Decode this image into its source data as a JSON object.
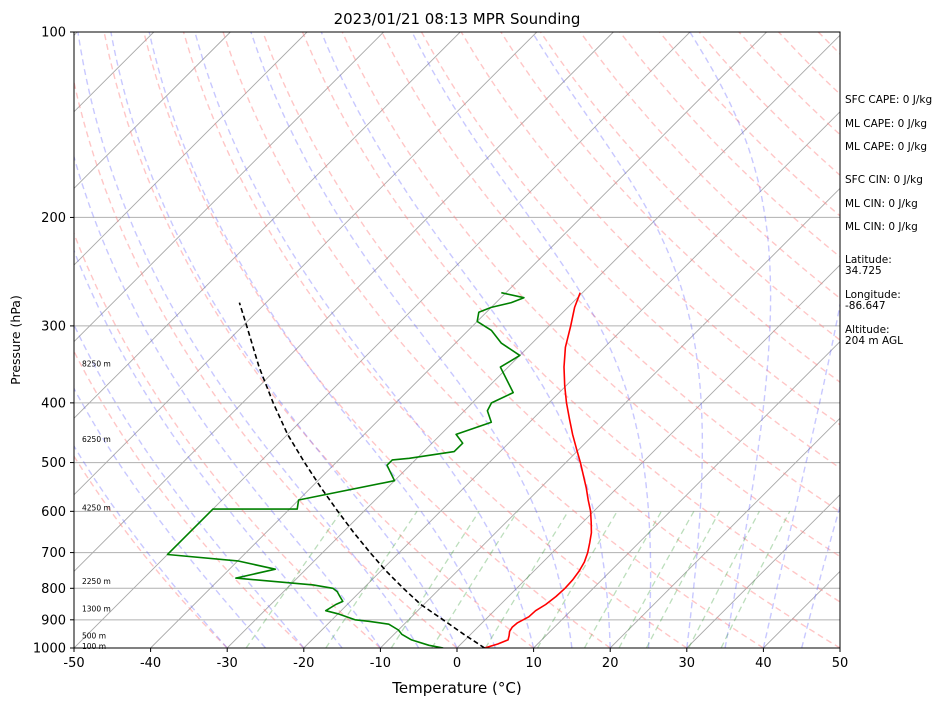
{
  "chart_data": {
    "type": "skew-t log-p",
    "title": "2023/01/21 08:13 MPR Sounding",
    "xlabel": "Temperature (°C)",
    "ylabel": "Pressure (hPa)",
    "xlim": [
      -50,
      50
    ],
    "ylim": [
      1000,
      100
    ],
    "y_scale": "log",
    "grid": true,
    "x_ticks": [
      -50,
      -40,
      -30,
      -20,
      -10,
      0,
      10,
      20,
      30,
      40,
      50
    ],
    "y_ticks": [
      100,
      200,
      300,
      400,
      500,
      600,
      700,
      800,
      900,
      1000
    ],
    "height_labels": [
      {
        "pressure": 993,
        "label": "100 m"
      },
      {
        "pressure": 954,
        "label": "500 m"
      },
      {
        "pressure": 863,
        "label": "1300 m"
      },
      {
        "pressure": 778,
        "label": "2250 m"
      },
      {
        "pressure": 591,
        "label": "4250 m"
      },
      {
        "pressure": 458,
        "label": "6250 m"
      },
      {
        "pressure": 345,
        "label": "8250 m"
      }
    ],
    "series": [
      {
        "role": "temperature",
        "color": "#ff0000",
        "points": [
          [
            3.6,
            1000
          ],
          [
            4.8,
            985
          ],
          [
            5.6,
            970
          ],
          [
            5.2,
            955
          ],
          [
            4.7,
            940
          ],
          [
            4.5,
            925
          ],
          [
            4.6,
            910
          ],
          [
            5.3,
            890
          ],
          [
            5.4,
            870
          ],
          [
            5.9,
            850
          ],
          [
            6.2,
            825
          ],
          [
            6.3,
            800
          ],
          [
            6.2,
            775
          ],
          [
            5.9,
            750
          ],
          [
            5.4,
            725
          ],
          [
            4.6,
            700
          ],
          [
            3.6,
            675
          ],
          [
            2.5,
            650
          ],
          [
            1.1,
            625
          ],
          [
            -0.4,
            600
          ],
          [
            -2.2,
            575
          ],
          [
            -4.0,
            550
          ],
          [
            -6.0,
            525
          ],
          [
            -8.1,
            500
          ],
          [
            -10.4,
            475
          ],
          [
            -12.8,
            450
          ],
          [
            -15.2,
            425
          ],
          [
            -17.7,
            400
          ],
          [
            -20.2,
            375
          ],
          [
            -22.7,
            350
          ],
          [
            -25.1,
            325
          ],
          [
            -27.2,
            300
          ],
          [
            -29.1,
            280
          ],
          [
            -30.3,
            265
          ]
        ]
      },
      {
        "role": "dewpoint",
        "color": "#008000",
        "points": [
          [
            -1.8,
            1000
          ],
          [
            -4,
            990
          ],
          [
            -7,
            970
          ],
          [
            -9,
            950
          ],
          [
            -10,
            935
          ],
          [
            -12,
            915
          ],
          [
            -15,
            905
          ],
          [
            -17,
            900
          ],
          [
            -20,
            880
          ],
          [
            -22,
            870
          ],
          [
            -21.5,
            850
          ],
          [
            -21,
            840
          ],
          [
            -22,
            825
          ],
          [
            -23,
            810
          ],
          [
            -24,
            800
          ],
          [
            -27,
            790
          ],
          [
            -38,
            770
          ],
          [
            -34,
            745
          ],
          [
            -40,
            722
          ],
          [
            -50,
            705
          ],
          [
            -50,
            700
          ],
          [
            -50,
            600
          ],
          [
            -50,
            595
          ],
          [
            -39,
            595
          ],
          [
            -40,
            575
          ],
          [
            -30,
            535
          ],
          [
            -33,
            505
          ],
          [
            -33,
            495
          ],
          [
            -31,
            492
          ],
          [
            -26,
            480
          ],
          [
            -26,
            465
          ],
          [
            -28,
            450
          ],
          [
            -25,
            430
          ],
          [
            -27,
            412
          ],
          [
            -27.5,
            400
          ],
          [
            -26,
            385
          ],
          [
            -31,
            350
          ],
          [
            -30,
            335
          ],
          [
            -34,
            320
          ],
          [
            -37,
            305
          ],
          [
            -40,
            295
          ],
          [
            -41,
            285
          ],
          [
            -40,
            280
          ],
          [
            -38,
            275
          ],
          [
            -37,
            270
          ],
          [
            -40.6,
            265
          ]
        ]
      },
      {
        "role": "parcel",
        "color": "#000000",
        "dashed": true,
        "points": [
          [
            3.6,
            1000
          ],
          [
            -0.9,
            950
          ],
          [
            -5.5,
            900
          ],
          [
            -10.4,
            850
          ],
          [
            -14.8,
            800
          ],
          [
            -19.3,
            750
          ],
          [
            -23.8,
            700
          ],
          [
            -28.5,
            650
          ],
          [
            -33.4,
            600
          ],
          [
            -38.6,
            550
          ],
          [
            -44.1,
            500
          ],
          [
            -50.0,
            450
          ],
          [
            -56.0,
            400
          ],
          [
            -62.5,
            350
          ],
          [
            -69.5,
            300
          ],
          [
            -73.5,
            275
          ]
        ]
      }
    ]
  },
  "stats": {
    "sfc_cape": "SFC CAPE: 0 J/kg",
    "ml_cape_1": "ML CAPE: 0 J/kg",
    "ml_cape_2": "ML CAPE: 0 J/kg",
    "sfc_cin": "SFC CIN: 0 J/kg",
    "ml_cin_1": "ML CIN: 0 J/kg",
    "ml_cin_2": "ML CIN: 0 J/kg",
    "latitude": "Latitude:\n34.725",
    "longitude": "Longitude:\n-86.647",
    "altitude": "Altitude:\n204 m AGL"
  }
}
